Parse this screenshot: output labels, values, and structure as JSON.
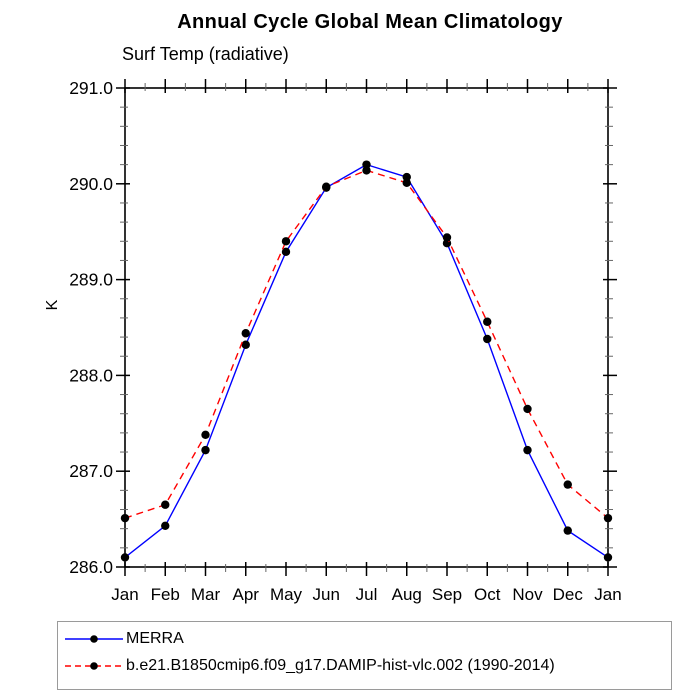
{
  "page": {
    "background": "#ffffff"
  },
  "chart_data": {
    "type": "line",
    "title": "Annual Cycle Global Mean Climatology",
    "subtitle": "Surf Temp (radiative)",
    "xlabel": "",
    "ylabel": "K",
    "ylim": [
      286.0,
      291.0
    ],
    "y_major_step": 1.0,
    "y_minor_step": 0.2,
    "y_tick_labels": [
      "286.0",
      "287.0",
      "288.0",
      "289.0",
      "290.0",
      "291.0"
    ],
    "categories": [
      "Jan",
      "Feb",
      "Mar",
      "Apr",
      "May",
      "Jun",
      "Jul",
      "Aug",
      "Sep",
      "Oct",
      "Nov",
      "Dec",
      "Jan"
    ],
    "series": [
      {
        "name": "MERRA",
        "color": "#0000ff",
        "line_style": "solid",
        "marker": "filled-black-circle",
        "values": [
          286.1,
          286.43,
          287.22,
          288.32,
          289.29,
          289.96,
          290.2,
          290.07,
          289.38,
          288.38,
          287.22,
          286.38,
          286.1
        ]
      },
      {
        "name": "b.e21.B1850cmip6.f09_g17.DAMIP-hist-vlc.002 (1990-2014)",
        "color": "#ff0000",
        "line_style": "dashed",
        "marker": "filled-black-circle",
        "values": [
          286.51,
          286.65,
          287.38,
          288.44,
          289.4,
          289.97,
          290.14,
          290.01,
          289.44,
          288.56,
          287.65,
          286.86,
          286.51
        ]
      }
    ],
    "marker_color": "#000000",
    "grid": false,
    "legend_position": "bottom-left-box"
  }
}
